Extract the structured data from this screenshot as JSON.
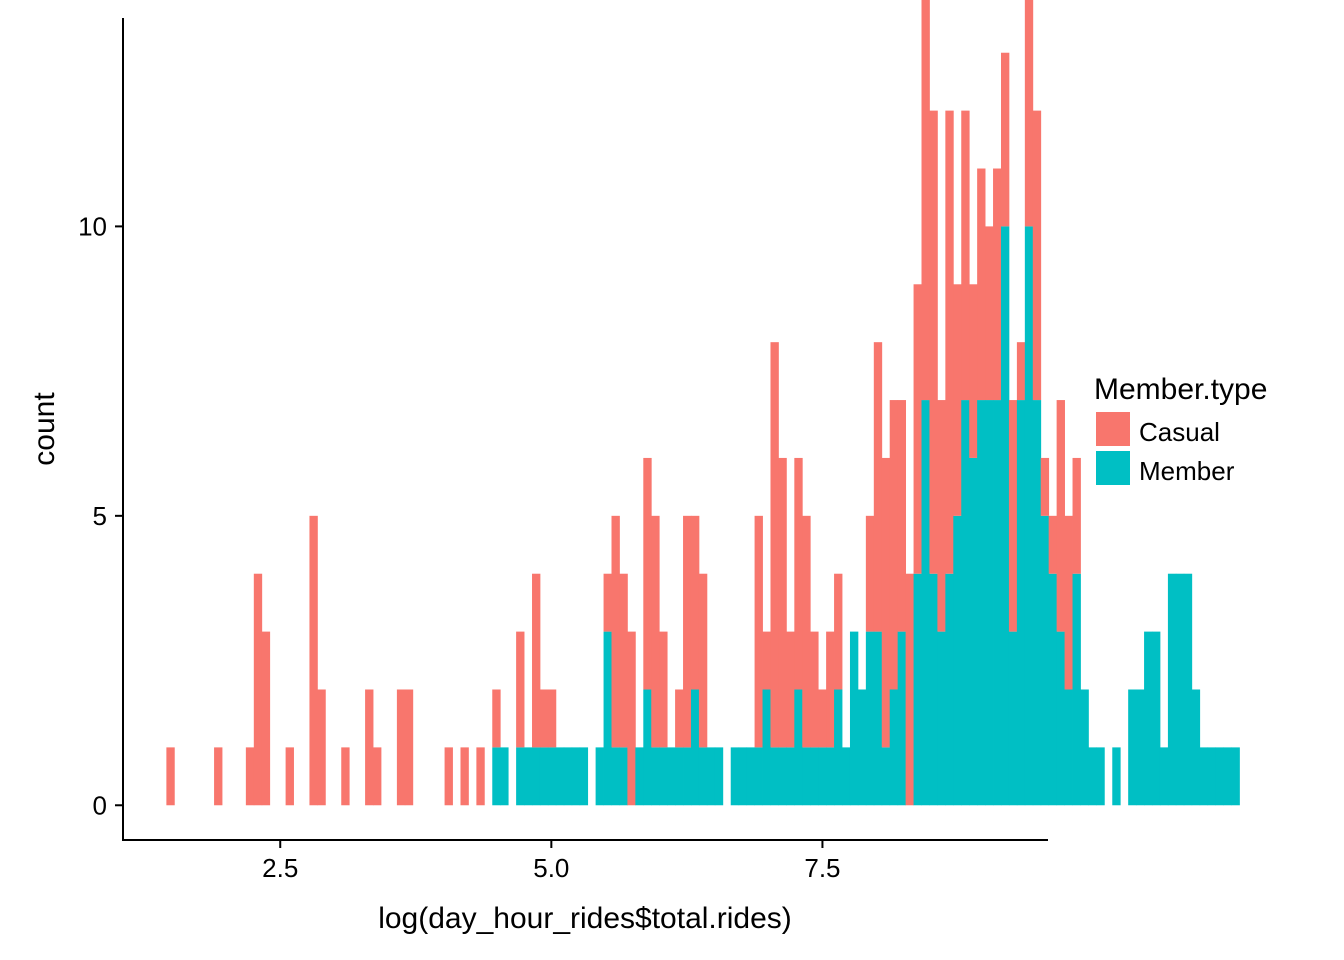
{
  "chart_data": {
    "type": "bar",
    "subtype": "stacked-histogram",
    "title": "",
    "xlabel": "log(day_hour_rides$total.rides)",
    "ylabel": "count",
    "xlim": [
      1.05,
      9.58
    ],
    "ylim": [
      -0.6,
      13.6
    ],
    "x_ticks": [
      {
        "value": 2.5,
        "label": "2.5"
      },
      {
        "value": 5.0,
        "label": "5.0"
      },
      {
        "value": 7.5,
        "label": "7.5"
      }
    ],
    "y_ticks": [
      {
        "value": 0,
        "label": "0"
      },
      {
        "value": 5,
        "label": "5"
      },
      {
        "value": 10,
        "label": "10"
      }
    ],
    "grid": false,
    "legend": {
      "title": "Member.type",
      "placement": "right",
      "entries": [
        {
          "name": "Casual",
          "color": "#F8766D"
        },
        {
          "name": "Member",
          "color": "#00BFC4"
        }
      ]
    },
    "bin_start": 1.45,
    "bin_width": 0.0733,
    "series": [
      {
        "name": "Casual",
        "color": "#F8766D",
        "values": [
          1,
          0,
          0,
          0,
          0,
          0,
          1,
          0,
          0,
          0,
          1,
          4,
          3,
          0,
          0,
          1,
          0,
          0,
          5,
          2,
          0,
          0,
          1,
          0,
          0,
          2,
          1,
          0,
          0,
          2,
          2,
          0,
          0,
          0,
          0,
          1,
          0,
          1,
          0,
          1,
          0,
          1,
          0,
          0,
          2,
          0,
          3,
          1,
          1,
          0,
          0,
          0,
          0,
          0,
          0,
          1,
          4,
          3,
          3,
          0,
          4,
          4,
          2,
          0,
          1,
          4,
          3,
          3,
          0,
          0,
          0,
          0,
          0,
          0,
          4,
          1,
          7,
          5,
          2,
          4,
          4,
          2,
          1,
          2,
          2,
          0,
          0,
          0,
          2,
          5,
          5,
          5,
          4,
          4,
          5,
          8,
          8,
          4,
          8,
          4,
          5,
          3,
          4,
          3,
          4,
          3,
          4,
          1,
          5,
          5,
          1,
          1,
          4,
          3,
          2,
          0,
          0,
          0,
          0,
          0,
          0,
          0,
          0,
          0,
          0,
          0,
          0,
          0,
          0,
          0,
          0,
          0,
          0,
          0,
          0
        ]
      },
      {
        "name": "Member",
        "color": "#00BFC4",
        "values": [
          0,
          0,
          0,
          0,
          0,
          0,
          0,
          0,
          0,
          0,
          0,
          0,
          0,
          0,
          0,
          0,
          0,
          0,
          0,
          0,
          0,
          0,
          0,
          0,
          0,
          0,
          0,
          0,
          0,
          0,
          0,
          0,
          0,
          0,
          0,
          0,
          0,
          0,
          0,
          0,
          0,
          1,
          1,
          0,
          1,
          1,
          1,
          1,
          1,
          1,
          1,
          1,
          1,
          0,
          1,
          3,
          1,
          1,
          0,
          1,
          2,
          1,
          1,
          1,
          1,
          1,
          2,
          1,
          1,
          1,
          0,
          1,
          1,
          1,
          1,
          2,
          1,
          1,
          1,
          2,
          1,
          1,
          1,
          1,
          2,
          1,
          3,
          2,
          3,
          3,
          1,
          2,
          3,
          0,
          4,
          7,
          4,
          3,
          4,
          5,
          7,
          6,
          7,
          7,
          7,
          10,
          3,
          7,
          10,
          7,
          5,
          4,
          3,
          2,
          4,
          2,
          1,
          1,
          0,
          1,
          0,
          2,
          2,
          3,
          3,
          1,
          4,
          4,
          4,
          2,
          1,
          1,
          1,
          1,
          1
        ]
      }
    ]
  }
}
